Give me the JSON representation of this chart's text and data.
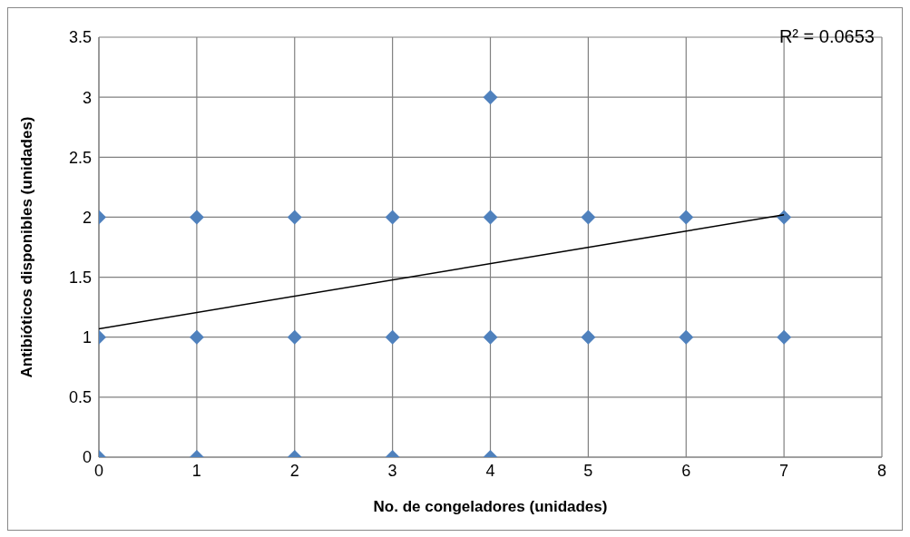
{
  "chart_data": {
    "type": "scatter",
    "xlabel": "No. de congeladores (unidades)",
    "ylabel": "Antibióticos  disponibles (unidades)",
    "annotations": [
      "R² = 0.0653"
    ],
    "xlim": [
      0,
      8
    ],
    "xticks": [
      0,
      1,
      2,
      3,
      4,
      5,
      6,
      7,
      8
    ],
    "ylim": [
      0,
      3.5
    ],
    "yticks": [
      0,
      0.5,
      1,
      1.5,
      2,
      2.5,
      3,
      3.5
    ],
    "grid": true,
    "marker": "diamond",
    "series": [
      {
        "color": "#4f81bd",
        "x": [
          0,
          0,
          0,
          1,
          1,
          1,
          2,
          2,
          2,
          3,
          3,
          3,
          4,
          4,
          4,
          4,
          5,
          5,
          6,
          6,
          7,
          7
        ],
        "values": [
          2,
          1,
          0,
          2,
          1,
          0,
          2,
          1,
          0,
          2,
          1,
          0,
          3,
          2,
          1,
          0,
          2,
          1,
          2,
          1,
          2,
          1
        ]
      },
      {
        "type": "line",
        "color": "#000000",
        "marker": "none",
        "x": [
          0,
          7
        ],
        "values": [
          1.07,
          2.02
        ]
      }
    ]
  }
}
